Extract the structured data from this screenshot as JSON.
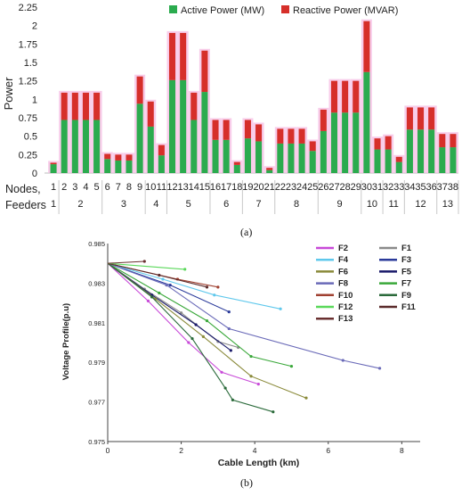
{
  "captions": {
    "a": "(a)",
    "b": "(b)"
  },
  "chart_data": [
    {
      "type": "bar",
      "stacked": true,
      "ylabel": "Power",
      "xlabel_rows": [
        "Nodes,",
        "Feeders"
      ],
      "ylim": [
        0,
        2.25
      ],
      "yticks": [
        "0",
        "0.25",
        "0.5",
        "0.75",
        "1",
        "1.25",
        "1.5",
        "1.75",
        "2",
        "2.25"
      ],
      "legend_position": "top-center",
      "grid": false,
      "colors": {
        "active": "#2bab4e",
        "reactive": "#d62f2a",
        "halo": "#f6bce3"
      },
      "series": [
        {
          "name": "Active Power (MW)",
          "key": "active"
        },
        {
          "name": "Reactive Power (MVAR)",
          "key": "reactive"
        }
      ],
      "nodes": [
        "1",
        "2",
        "3",
        "4",
        "5",
        "6",
        "7",
        "8",
        "9",
        "10",
        "11",
        "12",
        "13",
        "14",
        "15",
        "16",
        "17",
        "18",
        "19",
        "20",
        "21",
        "22",
        "23",
        "24",
        "25",
        "26",
        "27",
        "28",
        "29",
        "30",
        "31",
        "32",
        "33",
        "34",
        "35",
        "36",
        "37",
        "38"
      ],
      "active": [
        0.12,
        0.72,
        0.72,
        0.72,
        0.72,
        0.19,
        0.17,
        0.17,
        0.94,
        0.63,
        0.24,
        1.26,
        1.26,
        0.72,
        1.1,
        0.45,
        0.45,
        0.11,
        0.47,
        0.43,
        0.04,
        0.4,
        0.4,
        0.4,
        0.3,
        0.57,
        0.82,
        0.82,
        0.82,
        1.37,
        0.32,
        0.32,
        0.15,
        0.59,
        0.59,
        0.59,
        0.35,
        0.35
      ],
      "reactive": [
        0.02,
        0.37,
        0.37,
        0.37,
        0.37,
        0.07,
        0.08,
        0.08,
        0.37,
        0.34,
        0.14,
        0.64,
        0.64,
        0.37,
        0.56,
        0.27,
        0.27,
        0.04,
        0.25,
        0.23,
        0.03,
        0.2,
        0.2,
        0.2,
        0.13,
        0.29,
        0.43,
        0.43,
        0.43,
        0.69,
        0.15,
        0.18,
        0.07,
        0.3,
        0.3,
        0.3,
        0.18,
        0.18
      ],
      "feeders": [
        {
          "label": "1",
          "start": 1,
          "end": 1
        },
        {
          "label": "2",
          "start": 2,
          "end": 5
        },
        {
          "label": "3",
          "start": 6,
          "end": 9
        },
        {
          "label": "4",
          "start": 10,
          "end": 11
        },
        {
          "label": "5",
          "start": 12,
          "end": 15
        },
        {
          "label": "6",
          "start": 16,
          "end": 18
        },
        {
          "label": "7",
          "start": 19,
          "end": 21
        },
        {
          "label": "8",
          "start": 22,
          "end": 25
        },
        {
          "label": "9",
          "start": 26,
          "end": 29
        },
        {
          "label": "10",
          "start": 30,
          "end": 31
        },
        {
          "label": "11",
          "start": 32,
          "end": 33
        },
        {
          "label": "12",
          "start": 34,
          "end": 36
        },
        {
          "label": "13",
          "start": 37,
          "end": 38
        }
      ]
    },
    {
      "type": "line",
      "xlabel": "Cable Length (km)",
      "ylabel": "Voltage Profile(p.u)",
      "xlim": [
        0,
        8.5
      ],
      "ylim": [
        0.975,
        0.985
      ],
      "xticks": [
        "0",
        "2",
        "4",
        "6",
        "8"
      ],
      "yticks": [
        "0.975",
        "0.977",
        "0.979",
        "0.981",
        "0.983",
        "0.985"
      ],
      "legend_position": "top-right",
      "grid": false,
      "series": [
        {
          "name": "F1",
          "color": "#8a8a8a",
          "x": [
            0,
            1.0,
            2.0,
            3.0,
            3.55
          ],
          "y": [
            0.984,
            0.9827,
            0.9815,
            0.98005,
            0.97975
          ]
        },
        {
          "name": "F2",
          "color": "#c84ad8",
          "x": [
            0,
            1.1,
            2.2,
            3.1,
            4.1
          ],
          "y": [
            0.984,
            0.9821,
            0.98,
            0.9785,
            0.9779
          ]
        },
        {
          "name": "F3",
          "color": "#2a3a9a",
          "x": [
            0,
            1.7,
            3.3
          ],
          "y": [
            0.984,
            0.9829,
            0.98155
          ]
        },
        {
          "name": "F4",
          "color": "#5fc8ec",
          "x": [
            0,
            1.5,
            2.9,
            4.7
          ],
          "y": [
            0.984,
            0.9832,
            0.9824,
            0.9817
          ]
        },
        {
          "name": "F5",
          "color": "#1a1a6a",
          "x": [
            0,
            1.2,
            2.4,
            3.35
          ],
          "y": [
            0.984,
            0.9824,
            0.9809,
            0.9796
          ]
        },
        {
          "name": "F6",
          "color": "#8a8a3a",
          "x": [
            0,
            1.3,
            2.6,
            3.9,
            5.4
          ],
          "y": [
            0.984,
            0.9822,
            0.9803,
            0.9783,
            0.9772
          ]
        },
        {
          "name": "F7",
          "color": "#3aa83a",
          "x": [
            0,
            1.4,
            2.7,
            3.9,
            5.0
          ],
          "y": [
            0.984,
            0.9825,
            0.9811,
            0.9793,
            0.9788
          ]
        },
        {
          "name": "F8",
          "color": "#6a6ab8",
          "x": [
            0,
            1.6,
            3.3,
            6.4,
            7.4
          ],
          "y": [
            0.984,
            0.9829,
            0.9807,
            0.9791,
            0.9787
          ]
        },
        {
          "name": "F9",
          "color": "#2a6a3a",
          "x": [
            0,
            1.2,
            2.3,
            3.2,
            3.4,
            4.5
          ],
          "y": [
            0.984,
            0.9823,
            0.9802,
            0.9777,
            0.9771,
            0.9765
          ]
        },
        {
          "name": "F10",
          "color": "#a04030",
          "x": [
            0,
            1.9,
            3.0
          ],
          "y": [
            0.984,
            0.9832,
            0.9828
          ]
        },
        {
          "name": "F11",
          "color": "#5a2a2a",
          "x": [
            0,
            1.4,
            2.7
          ],
          "y": [
            0.984,
            0.9834,
            0.9828
          ]
        },
        {
          "name": "F12",
          "color": "#5ad85a",
          "x": [
            0,
            2.1
          ],
          "y": [
            0.984,
            0.9837
          ]
        },
        {
          "name": "F13",
          "color": "#6a3030",
          "x": [
            0,
            1.0
          ],
          "y": [
            0.984,
            0.9841
          ]
        }
      ],
      "legend_order": [
        "F2",
        "F1",
        "F4",
        "F3",
        "F6",
        "F5",
        "F8",
        "F7",
        "F10",
        "F9",
        "F12",
        "F11",
        "F13"
      ]
    }
  ]
}
